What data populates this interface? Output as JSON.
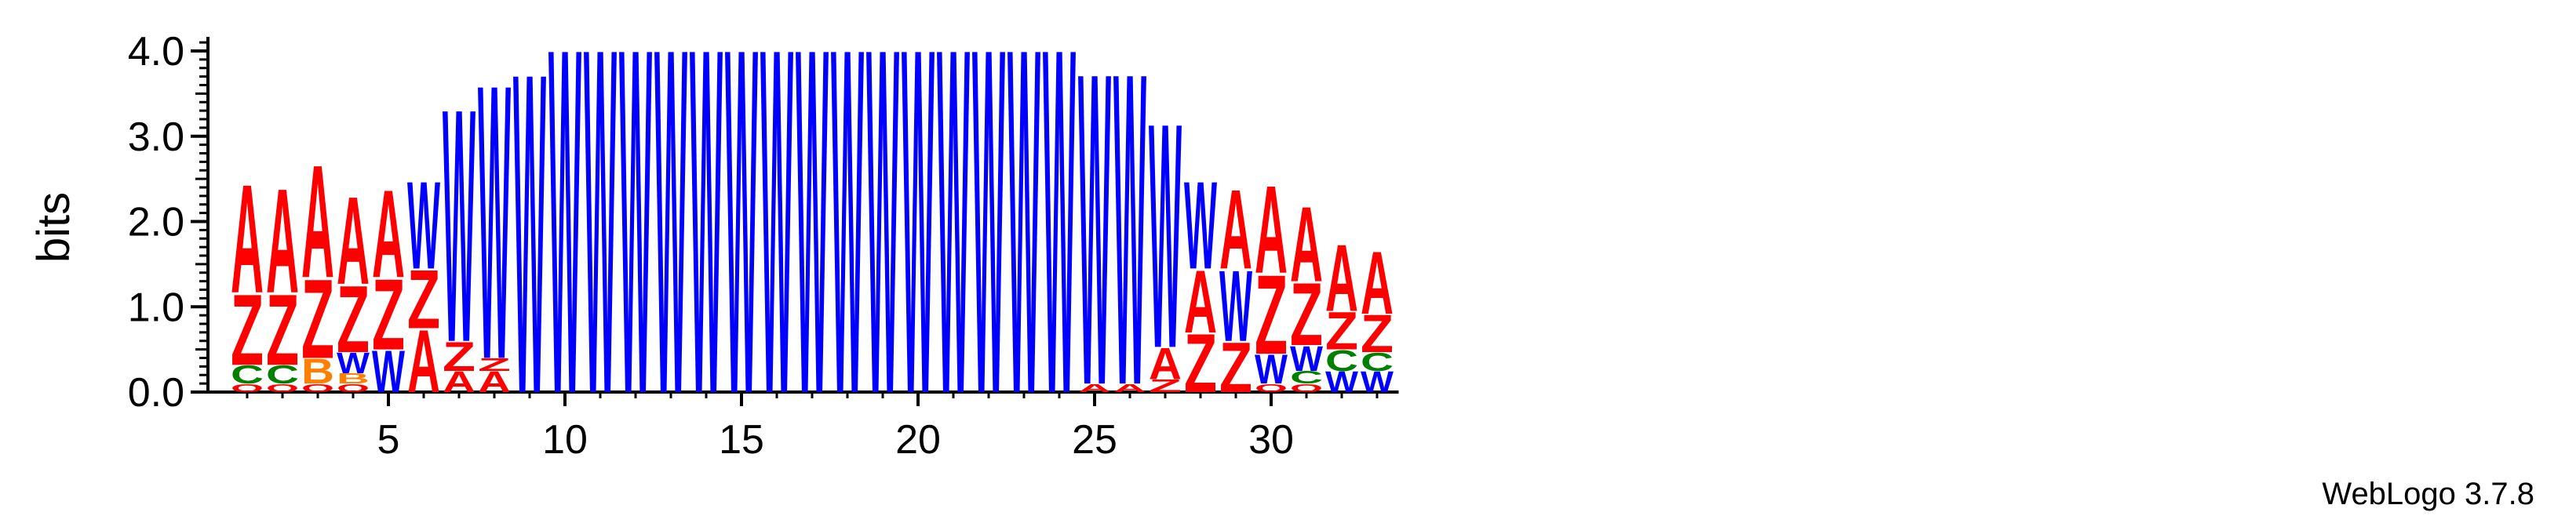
{
  "chart_data": {
    "type": "sequence-logo",
    "ylabel": "bits",
    "ylim": [
      0,
      4.2
    ],
    "y_ticks": [
      "0.0",
      "1.0",
      "2.0",
      "3.0",
      "4.0"
    ],
    "x_ticks": [
      "5",
      "10",
      "15",
      "20",
      "25",
      "30"
    ],
    "x_tick_values": [
      5,
      10,
      15,
      20,
      25,
      30
    ],
    "credit": "WebLogo 3.7.8",
    "colors": {
      "A": "#ff0000",
      "Z": "#ff0000",
      "W": "#0000ff",
      "C": "#008000",
      "B": "#ff8000",
      "O": "#ff0000"
    },
    "positions": [
      {
        "pos": 1,
        "stack": [
          [
            "O",
            0.1
          ],
          [
            "C",
            0.22
          ],
          [
            "Z",
            0.85
          ],
          [
            "A",
            1.3
          ]
        ]
      },
      {
        "pos": 2,
        "stack": [
          [
            "O",
            0.1
          ],
          [
            "C",
            0.22
          ],
          [
            "Z",
            0.85
          ],
          [
            "A",
            1.25
          ]
        ]
      },
      {
        "pos": 3,
        "stack": [
          [
            "O",
            0.1
          ],
          [
            "B",
            0.3
          ],
          [
            "Z",
            0.95
          ],
          [
            "A",
            1.35
          ]
        ]
      },
      {
        "pos": 4,
        "stack": [
          [
            "O",
            0.1
          ],
          [
            "B",
            0.12
          ],
          [
            "W",
            0.25
          ],
          [
            "Z",
            0.8
          ],
          [
            "A",
            1.05
          ]
        ]
      },
      {
        "pos": 5,
        "stack": [
          [
            "W",
            0.5
          ],
          [
            "Z",
            0.85
          ],
          [
            "A",
            1.05
          ]
        ]
      },
      {
        "pos": 6,
        "stack": [
          [
            "A",
            0.75
          ],
          [
            "Z",
            0.7
          ],
          [
            "W",
            1.05
          ]
        ]
      },
      {
        "pos": 7,
        "stack": [
          [
            "A",
            0.25
          ],
          [
            "Z",
            0.35
          ],
          [
            "W",
            2.8
          ]
        ]
      },
      {
        "pos": 8,
        "stack": [
          [
            "A",
            0.25
          ],
          [
            "Z",
            0.15
          ],
          [
            "W",
            3.3
          ]
        ]
      },
      {
        "pos": 9,
        "stack": [
          [
            "W",
            3.85
          ]
        ]
      },
      {
        "pos": 10,
        "stack": [
          [
            "W",
            4.15
          ]
        ]
      },
      {
        "pos": 11,
        "stack": [
          [
            "W",
            4.15
          ]
        ]
      },
      {
        "pos": 12,
        "stack": [
          [
            "W",
            4.15
          ]
        ]
      },
      {
        "pos": 13,
        "stack": [
          [
            "W",
            4.15
          ]
        ]
      },
      {
        "pos": 14,
        "stack": [
          [
            "W",
            4.15
          ]
        ]
      },
      {
        "pos": 15,
        "stack": [
          [
            "W",
            4.15
          ]
        ]
      },
      {
        "pos": 16,
        "stack": [
          [
            "W",
            4.15
          ]
        ]
      },
      {
        "pos": 17,
        "stack": [
          [
            "W",
            4.15
          ]
        ]
      },
      {
        "pos": 18,
        "stack": [
          [
            "W",
            4.15
          ]
        ]
      },
      {
        "pos": 19,
        "stack": [
          [
            "W",
            4.15
          ]
        ]
      },
      {
        "pos": 20,
        "stack": [
          [
            "W",
            4.15
          ]
        ]
      },
      {
        "pos": 21,
        "stack": [
          [
            "W",
            4.15
          ]
        ]
      },
      {
        "pos": 22,
        "stack": [
          [
            "W",
            4.15
          ]
        ]
      },
      {
        "pos": 23,
        "stack": [
          [
            "W",
            4.15
          ]
        ]
      },
      {
        "pos": 24,
        "stack": [
          [
            "W",
            4.15
          ]
        ]
      },
      {
        "pos": 25,
        "stack": [
          [
            "A",
            0.1
          ],
          [
            "W",
            3.75
          ]
        ]
      },
      {
        "pos": 26,
        "stack": [
          [
            "A",
            0.1
          ],
          [
            "W",
            3.75
          ]
        ]
      },
      {
        "pos": 27,
        "stack": [
          [
            "Z",
            0.15
          ],
          [
            "A",
            0.38
          ],
          [
            "W",
            2.7
          ]
        ]
      },
      {
        "pos": 28,
        "stack": [
          [
            "Z",
            0.7
          ],
          [
            "A",
            0.75
          ],
          [
            "W",
            1.05
          ]
        ]
      },
      {
        "pos": 29,
        "stack": [
          [
            "Z",
            0.6
          ],
          [
            "W",
            0.85
          ],
          [
            "A",
            0.95
          ]
        ]
      },
      {
        "pos": 30,
        "stack": [
          [
            "O",
            0.1
          ],
          [
            "W",
            0.35
          ],
          [
            "Z",
            0.95
          ],
          [
            "A",
            1.05
          ]
        ]
      },
      {
        "pos": 31,
        "stack": [
          [
            "O",
            0.1
          ],
          [
            "C",
            0.15
          ],
          [
            "W",
            0.3
          ],
          [
            "Z",
            0.75
          ],
          [
            "A",
            0.9
          ]
        ]
      },
      {
        "pos": 32,
        "stack": [
          [
            "W",
            0.25
          ],
          [
            "C",
            0.25
          ],
          [
            "Z",
            0.45
          ],
          [
            "A",
            0.8
          ]
        ]
      },
      {
        "pos": 33,
        "stack": [
          [
            "W",
            0.25
          ],
          [
            "C",
            0.22
          ],
          [
            "Z",
            0.45
          ],
          [
            "A",
            0.75
          ]
        ]
      }
    ]
  }
}
